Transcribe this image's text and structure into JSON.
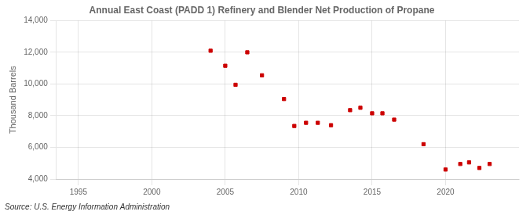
{
  "chart_data": {
    "type": "scatter",
    "title": "Annual East Coast (PADD 1) Refinery and Blender Net Production of Propane",
    "ylabel": "Thousand Barrels",
    "source": "Source: U.S. Energy Information Administration",
    "x": [
      2004,
      2005,
      2005.7,
      2006.5,
      2007.5,
      2009,
      2009.7,
      2010.5,
      2011.3,
      2012.2,
      2013.5,
      2014.2,
      2015,
      2015.7,
      2016.5,
      2018.5,
      2020,
      2021,
      2021.6,
      2022.3,
      2023
    ],
    "values": [
      12100,
      11150,
      9950,
      12000,
      10550,
      9050,
      7350,
      7550,
      7550,
      7400,
      8350,
      8500,
      8150,
      8150,
      7750,
      6200,
      4600,
      4950,
      5050,
      4700,
      4950
    ],
    "color": "#cc0000",
    "marker": "square",
    "xlim": [
      1993.5,
      2025
    ],
    "ylim": [
      4000,
      14000
    ],
    "xticks": [
      1995,
      2000,
      2005,
      2010,
      2015,
      2020
    ],
    "yticks": [
      {
        "value": 4000,
        "label": "4,000"
      },
      {
        "value": 6000,
        "label": "6,000"
      },
      {
        "value": 8000,
        "label": "8,000"
      },
      {
        "value": 10000,
        "label": "10,000"
      },
      {
        "value": 12000,
        "label": "12,000"
      },
      {
        "value": 14000,
        "label": "14,000"
      }
    ],
    "grid": true
  }
}
